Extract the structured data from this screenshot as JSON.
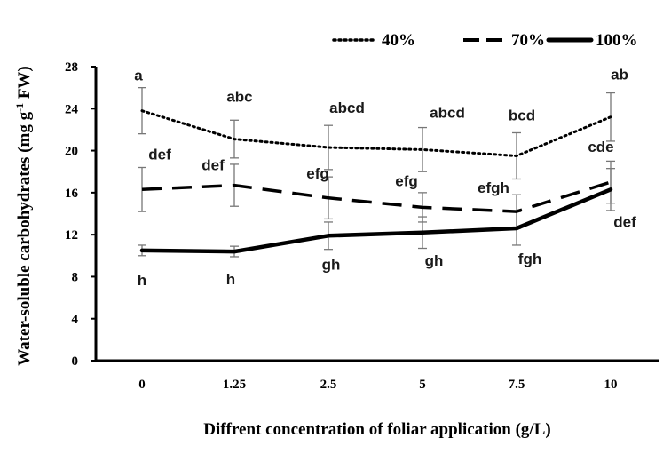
{
  "chart_data": {
    "type": "line",
    "categories": [
      "0",
      "1.25",
      "2.5",
      "5",
      "7.5",
      "10"
    ],
    "xlabel": "Diffrent concentration of foliar application (g/L)",
    "ylabel_main": "Water-soluble carbohydrates (mg g",
    "ylabel_sup": "-1",
    "ylabel_tail": " FW)",
    "ylim": [
      0,
      28
    ],
    "yticks": [
      0,
      4,
      8,
      12,
      16,
      20,
      24,
      28
    ],
    "grid": false,
    "legend_position": "top-right",
    "series": [
      {
        "name": "40%",
        "style": "dotted",
        "values": [
          23.8,
          21.1,
          20.3,
          20.1,
          19.5,
          23.2
        ],
        "errors": [
          2.2,
          1.8,
          2.1,
          2.1,
          2.2,
          2.3
        ],
        "sig_labels": [
          "a",
          "abc",
          "abcd",
          "abcd",
          "bcd",
          "ab"
        ]
      },
      {
        "name": "70%",
        "style": "dashed",
        "values": [
          16.3,
          16.7,
          15.5,
          14.6,
          14.2,
          17.0
        ],
        "errors": [
          2.1,
          2.0,
          2.0,
          1.4,
          1.6,
          2.0
        ],
        "sig_labels": [
          "def",
          "def",
          "efg",
          "efg",
          "efgh",
          "cde"
        ]
      },
      {
        "name": "100%",
        "style": "solid",
        "values": [
          10.5,
          10.4,
          11.9,
          12.2,
          12.6,
          16.3
        ],
        "errors": [
          0.5,
          0.5,
          1.3,
          1.5,
          1.6,
          2.0
        ],
        "sig_labels": [
          "h",
          "h",
          "gh",
          "gh",
          "fgh",
          "def"
        ]
      }
    ]
  }
}
